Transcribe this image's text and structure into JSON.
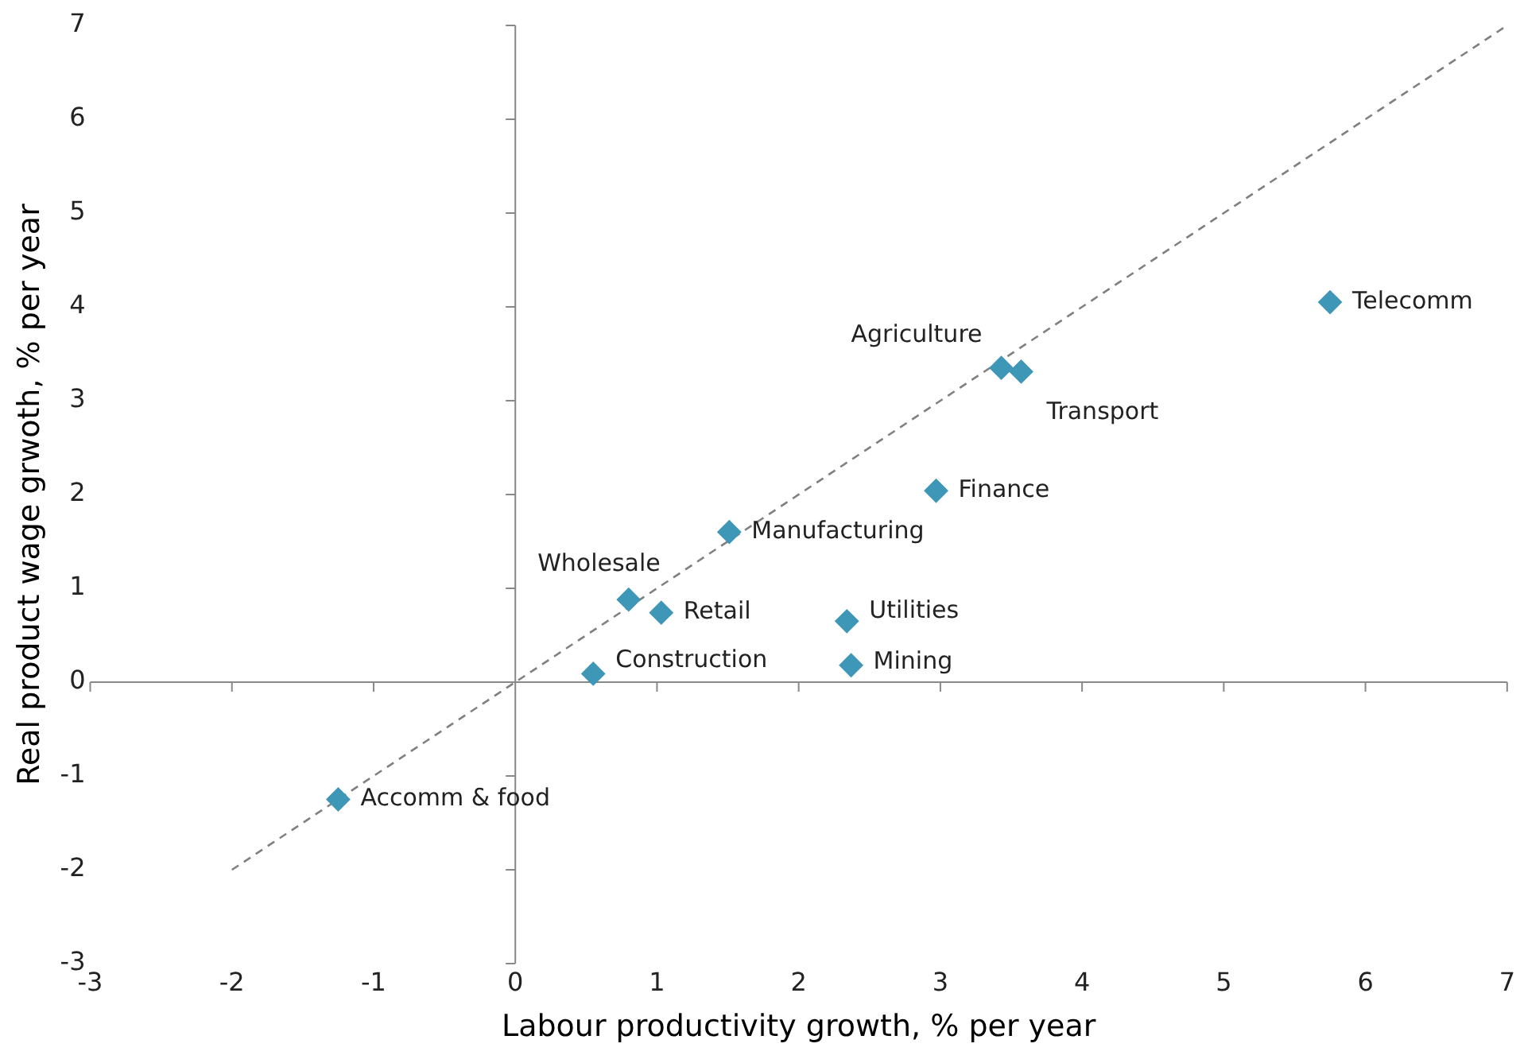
{
  "chart_data": {
    "type": "scatter",
    "xlabel": "Labour productivity growth, % per year",
    "ylabel": "Real product wage grwoth, % per year",
    "xlim": [
      -3,
      7
    ],
    "xticks": [
      -3,
      -2,
      -1,
      0,
      1,
      2,
      3,
      4,
      5,
      6,
      7
    ],
    "ylim": [
      -3,
      7
    ],
    "yticks": [
      -3,
      -2,
      -1,
      0,
      1,
      2,
      3,
      4,
      5,
      6,
      7
    ],
    "legend": false,
    "marker": "diamond",
    "series": [
      {
        "color": "#3f97b8",
        "x": [
          5.75,
          3.43,
          3.57,
          2.97,
          1.51,
          0.8,
          1.03,
          2.34,
          2.37,
          0.55,
          -1.25
        ],
        "values": [
          4.05,
          3.35,
          3.31,
          2.04,
          1.6,
          0.88,
          0.74,
          0.65,
          0.18,
          0.09,
          -1.25
        ]
      },
      {
        "type": "line",
        "color": "#808080",
        "line_style": "dashed",
        "marker": "none",
        "x": [
          -2,
          7
        ],
        "values": [
          -2,
          7
        ]
      }
    ],
    "annotations": [
      {
        "text": "Telecomm",
        "x": 5.75,
        "y": 4.05
      },
      {
        "text": "Agriculture",
        "x": 3.43,
        "y": 3.35
      },
      {
        "text": "Transport",
        "x": 3.57,
        "y": 3.31
      },
      {
        "text": "Finance",
        "x": 2.97,
        "y": 2.04
      },
      {
        "text": "Manufacturing",
        "x": 1.51,
        "y": 1.6
      },
      {
        "text": "Wholesale",
        "x": 0.8,
        "y": 0.88
      },
      {
        "text": "Retail",
        "x": 1.03,
        "y": 0.74
      },
      {
        "text": "Utilities",
        "x": 2.34,
        "y": 0.65
      },
      {
        "text": "Mining",
        "x": 2.37,
        "y": 0.18
      },
      {
        "text": "Construction",
        "x": 0.55,
        "y": 0.09
      },
      {
        "text": "Accomm & food",
        "x": -1.25,
        "y": -1.25
      }
    ]
  }
}
